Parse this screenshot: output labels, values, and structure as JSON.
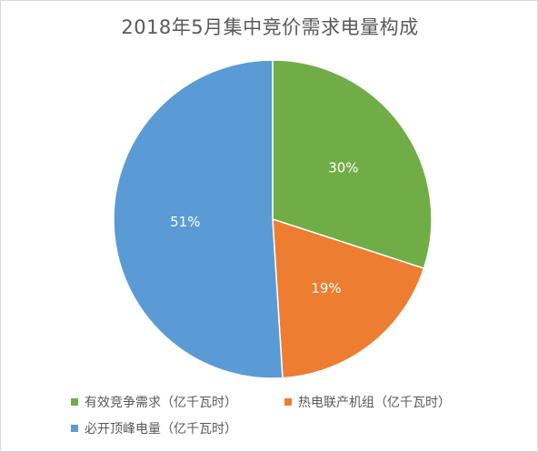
{
  "chart_data": {
    "type": "pie",
    "title": "2018年5月集中竞价需求电量构成",
    "slices": [
      {
        "label": "有效竞争需求（亿千瓦时）",
        "value": 30,
        "display": "30%",
        "color": "#70ad47"
      },
      {
        "label": "热电联产机组（亿千瓦时）",
        "value": 19,
        "display": "19%",
        "color": "#ed7d31"
      },
      {
        "label": "必开顶峰电量（亿千瓦时）",
        "value": 51,
        "display": "51%",
        "color": "#5b9bd5"
      }
    ],
    "start_angle_deg": 0,
    "direction": "clockwise",
    "legend_position": "bottom",
    "slice_border_color": "#ffffff"
  }
}
